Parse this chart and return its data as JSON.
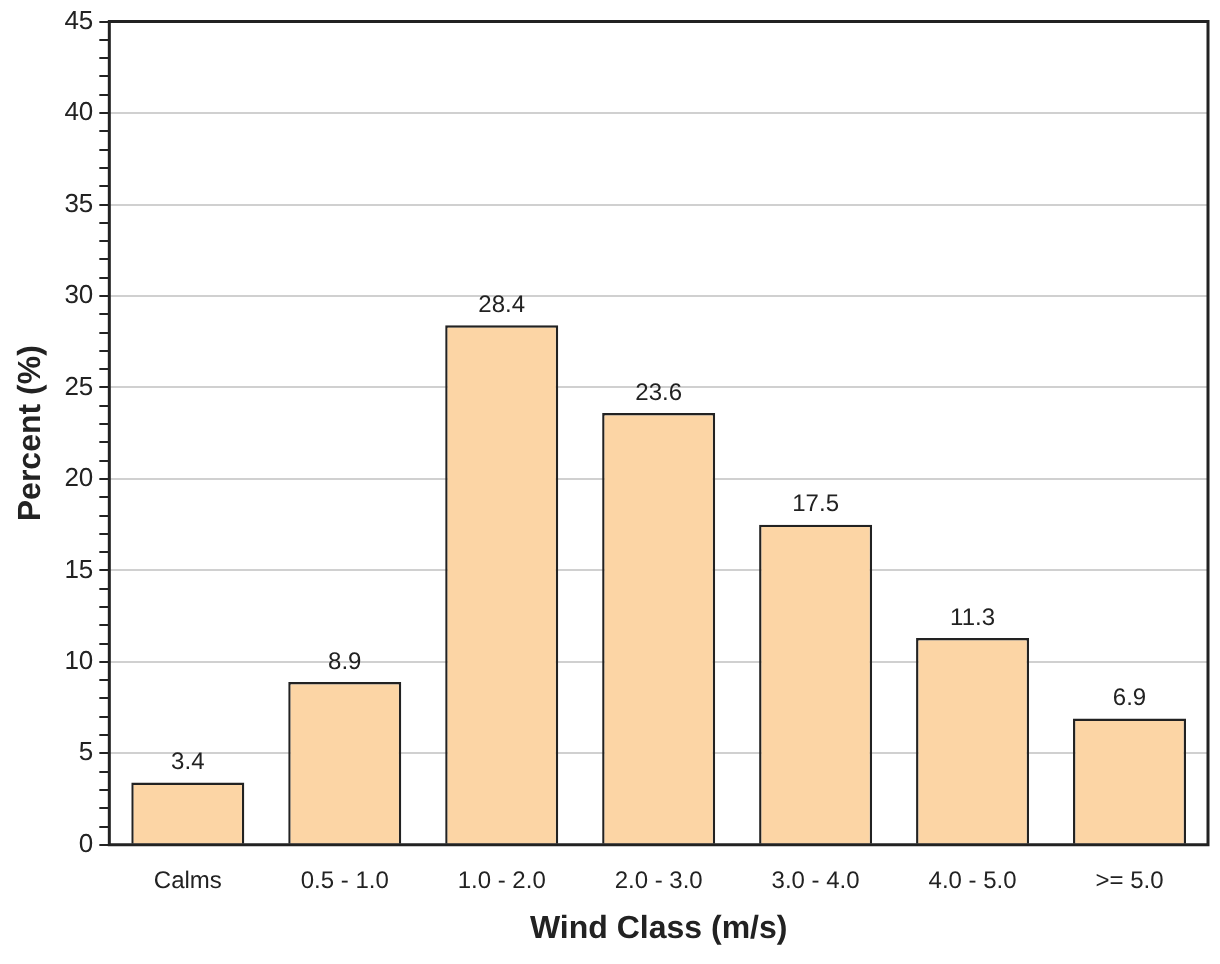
{
  "chart_data": {
    "type": "bar",
    "xlabel": "Wind Class (m/s)",
    "ylabel": "Percent (%)",
    "categories": [
      "Calms",
      "0.5 - 1.0",
      "1.0 - 2.0",
      "2.0 - 3.0",
      "3.0 - 4.0",
      "4.0 - 5.0",
      ">= 5.0"
    ],
    "values": [
      3.4,
      8.9,
      28.4,
      23.6,
      17.5,
      11.3,
      6.9
    ],
    "color": "#fcd5a5",
    "ylim": [
      0,
      45
    ],
    "yticks": [
      0,
      {
        "value": 1,
        "label": null
      },
      {
        "value": 2,
        "label": null
      },
      {
        "value": 3,
        "label": null
      },
      {
        "value": 4,
        "label": null
      },
      5,
      {
        "value": 6,
        "label": null
      },
      {
        "value": 7,
        "label": null
      },
      {
        "value": 8,
        "label": null
      },
      {
        "value": 9,
        "label": null
      },
      10,
      {
        "value": 11,
        "label": null
      },
      {
        "value": 12,
        "label": null
      },
      {
        "value": 13,
        "label": null
      },
      {
        "value": 14,
        "label": null
      },
      15,
      {
        "value": 16,
        "label": null
      },
      {
        "value": 17,
        "label": null
      },
      {
        "value": 18,
        "label": null
      },
      {
        "value": 19,
        "label": null
      },
      20,
      {
        "value": 21,
        "label": null
      },
      {
        "value": 22,
        "label": null
      },
      {
        "value": 23,
        "label": null
      },
      {
        "value": 24,
        "label": null
      },
      25,
      {
        "value": 26,
        "label": null
      },
      {
        "value": 27,
        "label": null
      },
      {
        "value": 28,
        "label": null
      },
      {
        "value": 29,
        "label": null
      },
      30,
      {
        "value": 31,
        "label": null
      },
      {
        "value": 32,
        "label": null
      },
      {
        "value": 33,
        "label": null
      },
      {
        "value": 34,
        "label": null
      },
      35,
      {
        "value": 36,
        "label": null
      },
      {
        "value": 37,
        "label": null
      },
      {
        "value": 38,
        "label": null
      },
      {
        "value": 39,
        "label": null
      },
      40,
      {
        "value": 41,
        "label": null
      },
      {
        "value": 42,
        "label": null
      },
      {
        "value": 43,
        "label": null
      },
      {
        "value": 44,
        "label": null
      },
      45
    ],
    "grid": "y",
    "data_labels": true,
    "legend": false
  }
}
